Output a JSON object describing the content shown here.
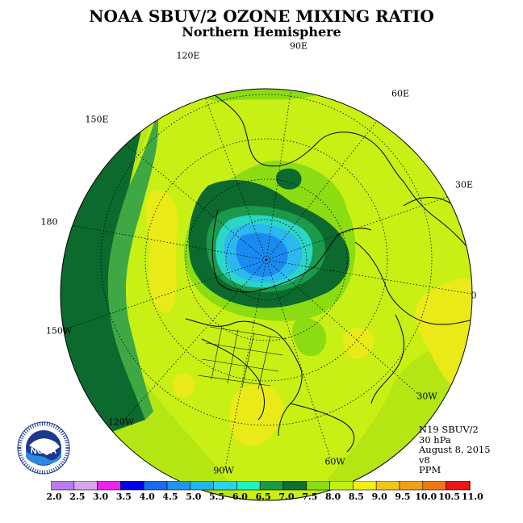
{
  "title": "NOAA SBUV/2 OZONE MIXING RATIO",
  "subtitle": "Northern Hemisphere",
  "info": [
    "N19 SBUV/2",
    "30 hPa",
    "August 8, 2015",
    "v8",
    "PPM"
  ],
  "logo_text": "NOAA",
  "longitude_labels": [
    "90E",
    "60E",
    "30E",
    "0",
    "30W",
    "60W",
    "90W",
    "120W",
    "150W",
    "180",
    "150E",
    "120E"
  ],
  "colorbar": {
    "tick_labels": [
      "2.0",
      "2.5",
      "3.0",
      "3.5",
      "4.0",
      "4.5",
      "5.0",
      "5.5",
      "6.0",
      "6.5",
      "7.0",
      "7.5",
      "8.0",
      "8.5",
      "9.0",
      "9.5",
      "10.0",
      "10.5",
      "11.0"
    ],
    "colors": [
      "#b87cf0",
      "#d8a6f0",
      "#ee22ee",
      "#0000ee",
      "#1a6cee",
      "#1e96f0",
      "#20b4f0",
      "#2ad2f0",
      "#1ef0c8",
      "#1a9a4a",
      "#0d6e36",
      "#8cdc14",
      "#c4f014",
      "#f0f014",
      "#f0c814",
      "#f0a014",
      "#f07814",
      "#f01414",
      "#8c5a3c"
    ]
  },
  "map_colors": {
    "ocean": "#b4e614",
    "lighter": "#c8f014",
    "yellow": "#eaea18",
    "green_mid": "#3fa844",
    "green_dark": "#0c6a2e",
    "light_green": "#6acc3c",
    "teal": "#2ad6c6",
    "cyan": "#2ab8ee",
    "blue": "#1a8af0"
  }
}
